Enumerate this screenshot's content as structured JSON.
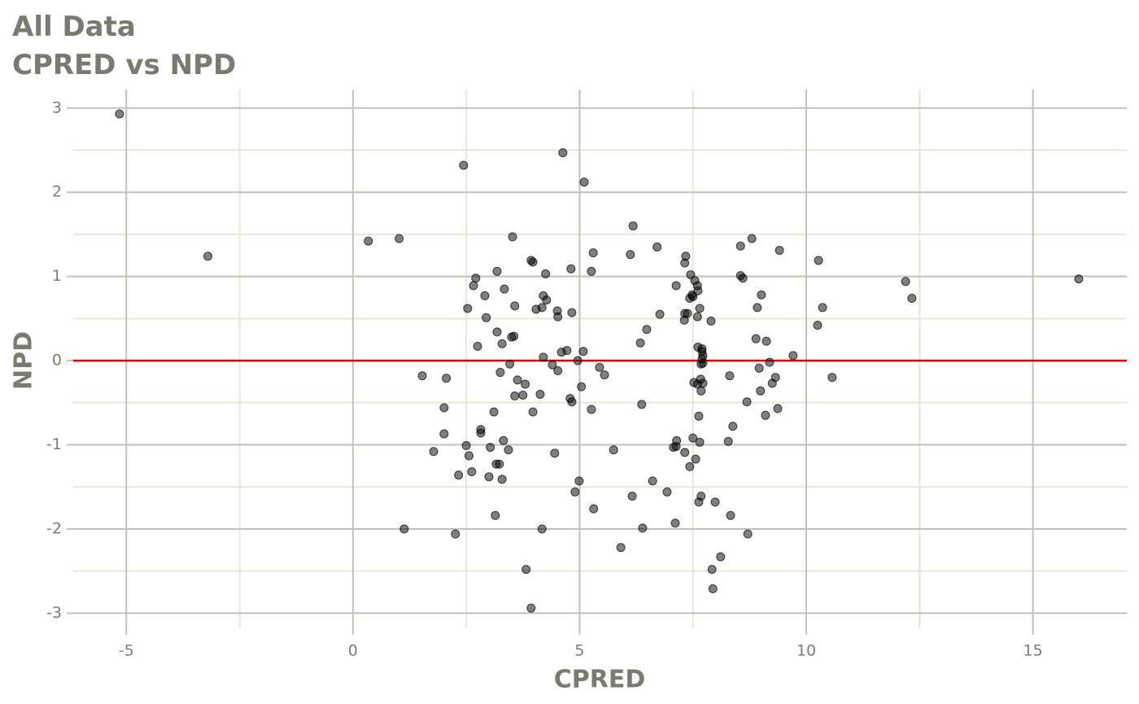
{
  "chart_data": {
    "type": "scatter",
    "title": "All Data",
    "subtitle": "CPRED vs NPD",
    "x_label": "CPRED",
    "y_label": "NPD",
    "x": [
      -5.15,
      -3.2,
      0.34,
      1.02,
      1.13,
      1.53,
      1.78,
      2.01,
      2.01,
      2.06,
      2.26,
      2.33,
      2.44,
      2.5,
      2.53,
      2.56,
      2.62,
      2.66,
      2.71,
      2.75,
      2.82,
      2.82,
      2.91,
      2.94,
      3.0,
      3.03,
      3.11,
      3.14,
      3.16,
      3.18,
      3.18,
      3.23,
      3.25,
      3.29,
      3.29,
      3.32,
      3.34,
      3.43,
      3.46,
      3.5,
      3.52,
      3.55,
      3.57,
      3.57,
      3.63,
      3.75,
      3.8,
      3.82,
      3.93,
      3.93,
      3.97,
      3.97,
      4.04,
      4.13,
      4.17,
      4.17,
      4.2,
      4.2,
      4.25,
      4.27,
      4.4,
      4.45,
      4.51,
      4.52,
      4.52,
      4.6,
      4.63,
      4.72,
      4.79,
      4.81,
      4.83,
      4.83,
      4.9,
      4.96,
      4.99,
      5.04,
      5.08,
      5.1,
      5.26,
      5.26,
      5.3,
      5.31,
      5.44,
      5.55,
      5.75,
      5.91,
      6.12,
      6.16,
      6.18,
      6.34,
      6.37,
      6.39,
      6.48,
      6.61,
      6.71,
      6.77,
      6.93,
      7.07,
      7.11,
      7.13,
      7.13,
      7.14,
      7.31,
      7.32,
      7.32,
      7.32,
      7.34,
      7.38,
      7.43,
      7.43,
      7.45,
      7.48,
      7.5,
      7.5,
      7.52,
      7.54,
      7.56,
      7.6,
      7.6,
      7.6,
      7.61,
      7.61,
      7.63,
      7.63,
      7.65,
      7.65,
      7.67,
      7.68,
      7.68,
      7.68,
      7.7,
      7.7,
      7.7,
      7.72,
      7.72,
      7.72,
      7.9,
      7.92,
      7.94,
      7.99,
      8.11,
      8.28,
      8.31,
      8.33,
      8.38,
      8.55,
      8.55,
      8.6,
      8.69,
      8.71,
      8.8,
      8.89,
      8.92,
      8.96,
      8.99,
      9.01,
      9.1,
      9.12,
      9.19,
      9.25,
      9.32,
      9.37,
      9.41,
      9.71,
      10.25,
      10.27,
      10.36,
      10.57,
      12.19,
      12.33,
      16.01
    ],
    "y": [
      2.93,
      1.24,
      1.42,
      1.45,
      -2.0,
      -0.18,
      -1.08,
      -0.56,
      -0.87,
      -0.21,
      -2.06,
      -1.36,
      2.32,
      -1.01,
      0.62,
      -1.13,
      -1.32,
      0.89,
      0.98,
      0.17,
      -0.82,
      -0.86,
      0.77,
      0.51,
      -1.38,
      -1.03,
      -0.61,
      -1.84,
      -1.23,
      1.06,
      0.34,
      -1.23,
      -0.14,
      -1.41,
      0.2,
      -0.95,
      0.85,
      -1.06,
      -0.04,
      0.28,
      1.47,
      0.29,
      -0.42,
      0.65,
      -0.23,
      -0.41,
      -0.28,
      -2.48,
      -2.94,
      1.19,
      -0.61,
      1.17,
      0.61,
      -0.4,
      -2.0,
      0.63,
      0.04,
      0.77,
      1.03,
      0.72,
      -0.05,
      -1.1,
      0.59,
      -0.12,
      0.52,
      0.1,
      2.47,
      0.12,
      -0.45,
      1.09,
      0.57,
      -0.49,
      -1.56,
      0.0,
      -1.43,
      -0.31,
      0.11,
      2.12,
      -0.58,
      1.06,
      1.28,
      -1.76,
      -0.08,
      -0.17,
      -1.06,
      -2.22,
      1.26,
      -1.61,
      1.6,
      0.21,
      -0.52,
      -1.99,
      0.37,
      -1.43,
      1.35,
      0.55,
      -1.56,
      -1.03,
      -1.93,
      0.89,
      -1.02,
      -0.95,
      0.48,
      0.56,
      1.16,
      -1.09,
      1.24,
      0.56,
      -1.26,
      0.74,
      1.02,
      0.78,
      0.76,
      -0.92,
      -0.26,
      0.95,
      -1.17,
      0.52,
      0.89,
      -0.28,
      0.83,
      0.16,
      -1.68,
      -0.66,
      0.62,
      -0.97,
      -0.22,
      -1.61,
      -0.36,
      -0.04,
      0.11,
      0.02,
      0.14,
      -0.27,
      -0.03,
      0.06,
      0.47,
      -2.48,
      -2.71,
      -1.68,
      -2.33,
      -0.96,
      -0.18,
      -1.84,
      -0.78,
      1.36,
      1.01,
      0.98,
      -0.49,
      -2.06,
      1.45,
      0.26,
      0.63,
      -0.09,
      -0.36,
      0.78,
      -0.65,
      0.23,
      -0.02,
      -0.27,
      -0.2,
      -0.57,
      1.31,
      0.06,
      0.42,
      1.19,
      0.63,
      -0.2,
      0.94,
      0.74,
      0.97
    ],
    "color": "#000000",
    "xlim": [
      -6.17,
      17.07
    ],
    "ylim": [
      -3.18,
      3.22
    ],
    "xticks": [
      -5,
      0,
      5,
      10,
      15
    ],
    "yticks": [
      -3,
      -2,
      -1,
      0,
      1,
      2,
      3
    ],
    "grid": true,
    "reference_line": 0,
    "reference_color": "#e00000"
  }
}
